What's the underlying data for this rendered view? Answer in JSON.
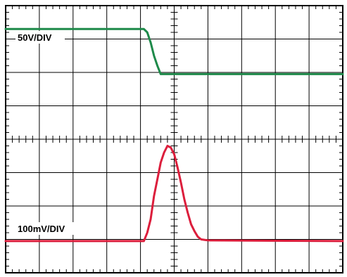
{
  "chart_data": {
    "type": "line",
    "xlim": [
      0,
      10
    ],
    "ylim": [
      0,
      8
    ],
    "grid": true,
    "divisions": {
      "x": 10,
      "y": 8,
      "minor_per_div": 5
    },
    "colors": {
      "background": "#ffffff",
      "grid": "#000000"
    },
    "series": [
      {
        "name": "50V/DIV",
        "color": "#1e8a4a",
        "points": [
          [
            0,
            7.3
          ],
          [
            4.1,
            7.3
          ],
          [
            4.2,
            7.2
          ],
          [
            4.3,
            6.9
          ],
          [
            4.4,
            6.5
          ],
          [
            4.5,
            6.2
          ],
          [
            4.6,
            5.95
          ],
          [
            10,
            5.95
          ]
        ]
      },
      {
        "name": "100mV/DIV",
        "color": "#dc1e3c",
        "points": [
          [
            0,
            0.95
          ],
          [
            4.1,
            0.95
          ],
          [
            4.2,
            1.2
          ],
          [
            4.3,
            1.6
          ],
          [
            4.4,
            2.3
          ],
          [
            4.5,
            2.8
          ],
          [
            4.6,
            3.3
          ],
          [
            4.7,
            3.6
          ],
          [
            4.8,
            3.8
          ],
          [
            4.9,
            3.75
          ],
          [
            5.0,
            3.55
          ],
          [
            5.1,
            3.15
          ],
          [
            5.2,
            2.7
          ],
          [
            5.3,
            2.2
          ],
          [
            5.4,
            1.8
          ],
          [
            5.5,
            1.45
          ],
          [
            5.6,
            1.25
          ],
          [
            5.7,
            1.08
          ],
          [
            5.8,
            1.0
          ],
          [
            6.0,
            0.97
          ],
          [
            10,
            0.95
          ]
        ]
      }
    ]
  }
}
